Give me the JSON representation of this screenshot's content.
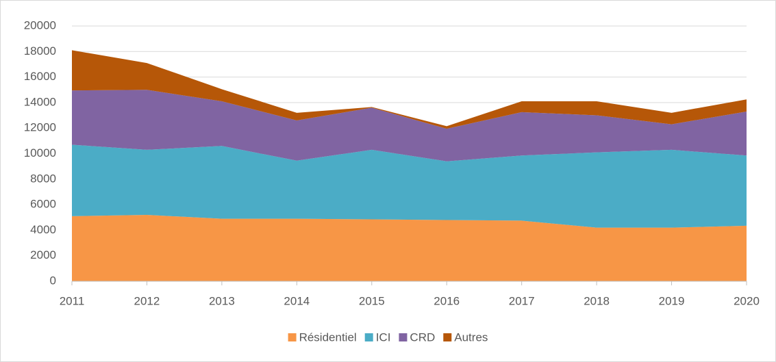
{
  "chart_data": {
    "type": "stacked_area",
    "x": [
      2011,
      2012,
      2013,
      2014,
      2015,
      2016,
      2017,
      2018,
      2019,
      2020
    ],
    "xlim": [
      2011,
      2020
    ],
    "xticks": [
      2011,
      2012,
      2013,
      2014,
      2015,
      2016,
      2017,
      2018,
      2019,
      2020
    ],
    "ylim": [
      0,
      20000
    ],
    "yticks": [
      0,
      2000,
      4000,
      6000,
      8000,
      10000,
      12000,
      14000,
      16000,
      18000,
      20000
    ],
    "grid": true,
    "legend": "bottom",
    "series": [
      {
        "name": "Résidentiel",
        "color": "#f79646",
        "values": [
          5100,
          5200,
          4900,
          4900,
          4850,
          4800,
          4750,
          4200,
          4200,
          4350
        ]
      },
      {
        "name": "ICI",
        "color": "#4bacc6",
        "values": [
          5600,
          5100,
          5700,
          4550,
          5450,
          4600,
          5100,
          5900,
          6100,
          5500
        ]
      },
      {
        "name": "CRD",
        "color": "#8064a2",
        "values": [
          4250,
          4700,
          3500,
          3150,
          3300,
          2550,
          3400,
          2900,
          2000,
          3450
        ]
      },
      {
        "name": "Autres",
        "color": "#b65708",
        "values": [
          3150,
          2100,
          950,
          600,
          50,
          200,
          850,
          1100,
          900,
          950
        ]
      }
    ]
  }
}
